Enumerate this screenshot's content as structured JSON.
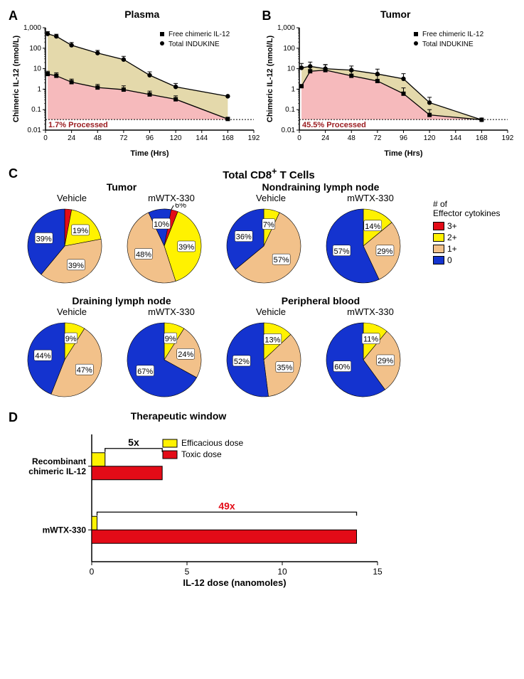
{
  "colors": {
    "pink": "#f6babc",
    "tan": "#e4d9ab",
    "pieRed": "#e30b17",
    "pieYellow": "#fff200",
    "pieTan": "#f2c18a",
    "pieBlue": "#1433cf",
    "barYellow": "#fff200",
    "barRed": "#e30b17",
    "markerSquare": "■",
    "markerCircle": "●"
  },
  "panelA": {
    "label": "A",
    "title": "Plasma",
    "series1_label": "Free chimeric IL-12",
    "series2_label": "Total INDUKINE",
    "processed_text": "1.7% Processed",
    "xlabel": "Time (Hrs)",
    "ylabel": "Chimeric IL-12 (nmol/L)",
    "xlim": [
      0,
      192
    ],
    "xtick_step": 24,
    "ylog": true,
    "ylim": [
      0.01,
      1000
    ],
    "yticks": [
      0.01,
      0.1,
      1,
      10,
      100,
      1000
    ],
    "ytick_labels": [
      "0.01",
      "0.1",
      "1",
      "10",
      "100",
      "1,000"
    ],
    "free_x": [
      2,
      10,
      24,
      48,
      72,
      96,
      120,
      168
    ],
    "free_y": [
      5.5,
      4.5,
      2.2,
      1.2,
      0.95,
      0.55,
      0.32,
      0.035
    ],
    "free_err": [
      2.0,
      1.8,
      0.9,
      0.5,
      0.5,
      0.25,
      0.15,
      0
    ],
    "tot_x": [
      2,
      10,
      24,
      48,
      72,
      96,
      120,
      168
    ],
    "tot_y": [
      500,
      380,
      140,
      58,
      28,
      4.8,
      1.3,
      0.45
    ],
    "tot_err": [
      150,
      100,
      50,
      20,
      12,
      2.2,
      0.6,
      0
    ]
  },
  "panelB": {
    "label": "B",
    "title": "Tumor",
    "series1_label": "Free chimeric IL-12",
    "series2_label": "Total INDUKINE",
    "processed_text": "45.5% Processed",
    "xlabel": "Time (Hrs)",
    "ylabel": "Chimeric IL-12 (nmol/L)",
    "xlim": [
      0,
      192
    ],
    "xtick_step": 24,
    "ylog": true,
    "ylim": [
      0.01,
      1000
    ],
    "yticks": [
      0.01,
      0.1,
      1,
      10,
      100,
      1000
    ],
    "ytick_labels": [
      "0.01",
      "0.1",
      "1",
      "10",
      "100",
      "1,000"
    ],
    "free_x": [
      2,
      10,
      24,
      48,
      72,
      96,
      120,
      168
    ],
    "free_y": [
      1.4,
      7.5,
      8.5,
      4.5,
      2.5,
      0.6,
      0.055,
      0.032
    ],
    "free_err": [
      0,
      4.5,
      7.0,
      3.0,
      2.2,
      0.55,
      0.045,
      0
    ],
    "tot_x": [
      2,
      10,
      24,
      48,
      72,
      96,
      120,
      168
    ],
    "tot_y": [
      11,
      13,
      10,
      8.5,
      5.5,
      3.2,
      0.22,
      0.032
    ],
    "tot_err": [
      7,
      8,
      6,
      5,
      4.0,
      2.5,
      0.18,
      0
    ],
    "dotted_y": 0.033
  },
  "panelC": {
    "label": "C",
    "section_title": "Total CD8⁺ T Cells",
    "legend_title": "# of\nEffector cytokines",
    "legend_items": [
      {
        "color": "#e30b17",
        "label": "3+"
      },
      {
        "color": "#fff200",
        "label": "2+"
      },
      {
        "color": "#f2c18a",
        "label": "1+"
      },
      {
        "color": "#1433cf",
        "label": "0"
      }
    ],
    "vehicle_label": "Vehicle",
    "treat_label": "mWTX-330",
    "groups": [
      {
        "title": "Tumor",
        "vehicle": [
          {
            "v": 3,
            "c": "#e30b17",
            "lbl": null
          },
          {
            "v": 19,
            "c": "#fff200",
            "lbl": "19%"
          },
          {
            "v": 39,
            "c": "#f2c18a",
            "lbl": "39%"
          },
          {
            "v": 39,
            "c": "#1433cf",
            "lbl": "39%"
          }
        ],
        "treat": [
          {
            "v": 6,
            "c": "#e30b17",
            "lbl": "6%",
            "callout": true
          },
          {
            "v": 39,
            "c": "#fff200",
            "lbl": "39%"
          },
          {
            "v": 48,
            "c": "#f2c18a",
            "lbl": "48%"
          },
          {
            "v": 10,
            "c": "#1433cf",
            "lbl": "10%"
          }
        ]
      },
      {
        "title": "Nondraining lymph node",
        "vehicle": [
          {
            "v": 7,
            "c": "#fff200",
            "lbl": "7%"
          },
          {
            "v": 57,
            "c": "#f2c18a",
            "lbl": "57%"
          },
          {
            "v": 36,
            "c": "#1433cf",
            "lbl": "36%"
          }
        ],
        "treat": [
          {
            "v": 14,
            "c": "#fff200",
            "lbl": "14%"
          },
          {
            "v": 29,
            "c": "#f2c18a",
            "lbl": "29%"
          },
          {
            "v": 57,
            "c": "#1433cf",
            "lbl": "57%"
          }
        ]
      },
      {
        "title": "Draining lymph node",
        "vehicle": [
          {
            "v": 9,
            "c": "#fff200",
            "lbl": "9%"
          },
          {
            "v": 47,
            "c": "#f2c18a",
            "lbl": "47%"
          },
          {
            "v": 44,
            "c": "#1433cf",
            "lbl": "44%"
          }
        ],
        "treat": [
          {
            "v": 9,
            "c": "#fff200",
            "lbl": "9%"
          },
          {
            "v": 24,
            "c": "#f2c18a",
            "lbl": "24%"
          },
          {
            "v": 67,
            "c": "#1433cf",
            "lbl": "67%"
          }
        ]
      },
      {
        "title": "Peripheral blood",
        "vehicle": [
          {
            "v": 13,
            "c": "#fff200",
            "lbl": "13%"
          },
          {
            "v": 35,
            "c": "#f2c18a",
            "lbl": "35%"
          },
          {
            "v": 52,
            "c": "#1433cf",
            "lbl": "52%"
          }
        ],
        "treat": [
          {
            "v": 11,
            "c": "#fff200",
            "lbl": "11%"
          },
          {
            "v": 29,
            "c": "#f2c18a",
            "lbl": "29%"
          },
          {
            "v": 60,
            "c": "#1433cf",
            "lbl": "60%"
          }
        ]
      }
    ]
  },
  "panelD": {
    "label": "D",
    "title": "Therapeutic window",
    "xlabel": "IL-12 dose (nanomoles)",
    "xlim": [
      0,
      15
    ],
    "xtick_step": 5,
    "legend": [
      {
        "color": "#fff200",
        "label": "Efficacious dose"
      },
      {
        "color": "#e30b17",
        "label": "Toxic dose"
      }
    ],
    "rows": [
      {
        "label": "Recombinant\nchimeric IL-12",
        "eff": 0.7,
        "tox": 3.7,
        "bracket": "5x",
        "bracket_col": "#000"
      },
      {
        "label": "mWTX-330",
        "eff": 0.28,
        "tox": 13.9,
        "bracket": "49x",
        "bracket_col": "#e30b17"
      }
    ]
  }
}
